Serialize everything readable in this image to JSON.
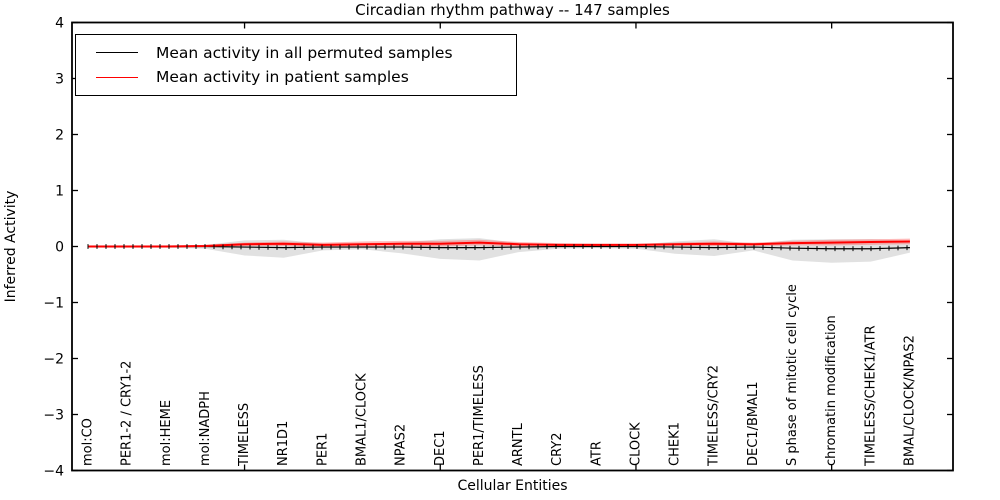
{
  "title": "Circadian rhythm pathway -- 147 samples",
  "legend": {
    "entries": [
      {
        "label": "Mean activity in all permuted samples",
        "color": "#000000"
      },
      {
        "label": "Mean activity in patient samples",
        "color": "#ff0000"
      }
    ]
  },
  "chart_data": {
    "type": "line",
    "title": "Circadian rhythm pathway -- 147 samples",
    "xlabel": "Cellular Entities",
    "ylabel": "Inferred Activity",
    "ylim": [
      -4,
      4
    ],
    "ytick_values": [
      4,
      3,
      2,
      1,
      0,
      -1,
      -2,
      -3,
      -4
    ],
    "ytick_labels": [
      "4",
      "3",
      "2",
      "1",
      "0",
      "−1",
      "−2",
      "−3",
      "−4"
    ],
    "grid": false,
    "legend_position": "upper left",
    "categories": [
      "mol:CO",
      "PER1-2 / CRY1-2",
      "mol:HEME",
      "mol:NADPH",
      "TIMELESS",
      "NR1D1",
      "PER1",
      "BMAL1/CLOCK",
      "NPAS2",
      "DEC1",
      "PER1/TIMELESS",
      "ARNTL",
      "CRY2",
      "ATR",
      "CLOCK",
      "CHEK1",
      "TIMELESS/CRY2",
      "DEC1/BMAL1",
      "S phase of mitotic cell cycle",
      "chromatin modification",
      "TIMELESS/CHEK1/ATR",
      "BMAL/CLOCK/NPAS2"
    ],
    "x_major_tick_indices": [
      4,
      9,
      14,
      19
    ],
    "series": [
      {
        "name": "Mean activity in all permuted samples",
        "color": "#000000",
        "marker": "vtick",
        "values": [
          0.0,
          0.0,
          0.0,
          0.0,
          -0.01,
          -0.02,
          -0.01,
          -0.01,
          -0.01,
          -0.02,
          -0.02,
          -0.01,
          0.0,
          0.0,
          0.0,
          -0.01,
          -0.02,
          -0.01,
          -0.03,
          -0.04,
          -0.04,
          -0.02
        ]
      },
      {
        "name": "Mean activity in patient samples",
        "color": "#ff0000",
        "marker": "none",
        "values": [
          0.0,
          0.0,
          0.0,
          0.01,
          0.04,
          0.05,
          0.03,
          0.04,
          0.05,
          0.05,
          0.07,
          0.04,
          0.03,
          0.03,
          0.03,
          0.04,
          0.05,
          0.04,
          0.06,
          0.07,
          0.08,
          0.09
        ]
      }
    ],
    "bands": [
      {
        "name": "permuted-activity-range",
        "color": "#c8c8c8",
        "opacity": 0.55,
        "upper": [
          0.02,
          0.02,
          0.02,
          0.03,
          0.11,
          0.12,
          0.05,
          0.03,
          0.07,
          0.13,
          0.15,
          0.06,
          0.03,
          0.02,
          0.03,
          0.09,
          0.13,
          0.04,
          0.12,
          0.13,
          0.13,
          0.1
        ],
        "lower": [
          -0.02,
          -0.02,
          -0.02,
          -0.04,
          -0.16,
          -0.2,
          -0.07,
          -0.05,
          -0.12,
          -0.22,
          -0.25,
          -0.1,
          -0.04,
          -0.03,
          -0.04,
          -0.13,
          -0.17,
          -0.07,
          -0.25,
          -0.29,
          -0.27,
          -0.11
        ]
      },
      {
        "name": "patient-activity-range",
        "color": "#ff6666",
        "opacity": 0.45,
        "upper": [
          0.01,
          0.01,
          0.01,
          0.03,
          0.07,
          0.09,
          0.07,
          0.09,
          0.1,
          0.1,
          0.12,
          0.08,
          0.06,
          0.05,
          0.05,
          0.07,
          0.09,
          0.07,
          0.1,
          0.12,
          0.13,
          0.14
        ],
        "lower": [
          -0.01,
          -0.01,
          -0.01,
          -0.01,
          0.01,
          0.01,
          -0.01,
          -0.01,
          0.0,
          0.0,
          0.02,
          0.0,
          0.0,
          0.01,
          0.01,
          0.01,
          0.01,
          0.01,
          0.02,
          0.02,
          0.03,
          0.04
        ]
      }
    ]
  }
}
